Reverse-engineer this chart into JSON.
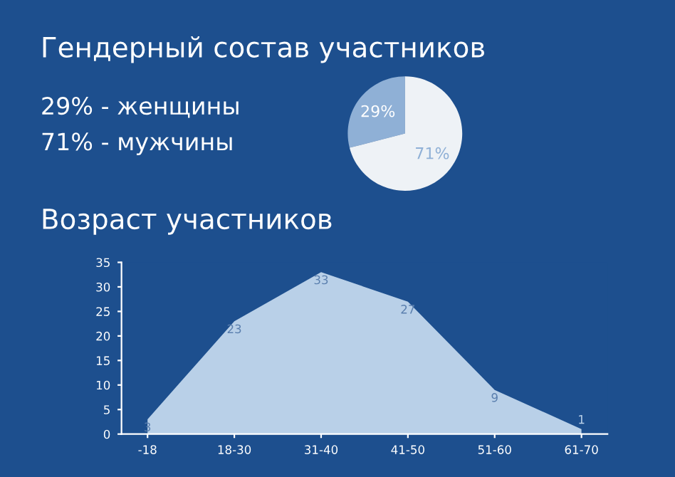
{
  "chart_data": [
    {
      "type": "pie",
      "title": "Гендерный состав участников",
      "categories": [
        null,
        null
      ],
      "values": [
        29,
        71
      ],
      "colors": [
        "#8fb0d6",
        "#eef2f6"
      ],
      "value_labels": [
        "29%",
        "71%"
      ],
      "annotations": [
        "29% - женщины",
        "71% - мужчины"
      ]
    },
    {
      "type": "area",
      "title": "Возраст участников",
      "categories": [
        "-18",
        "18-30",
        "31-40",
        "41-50",
        "51-60",
        "61-70"
      ],
      "values": [
        3,
        23,
        33,
        27,
        9,
        1
      ],
      "color": "#b9d0e8",
      "ylim": [
        0,
        35
      ],
      "yticks": [
        0,
        5,
        10,
        15,
        20,
        25,
        30,
        35
      ],
      "data_labels": true,
      "grid": false
    }
  ]
}
